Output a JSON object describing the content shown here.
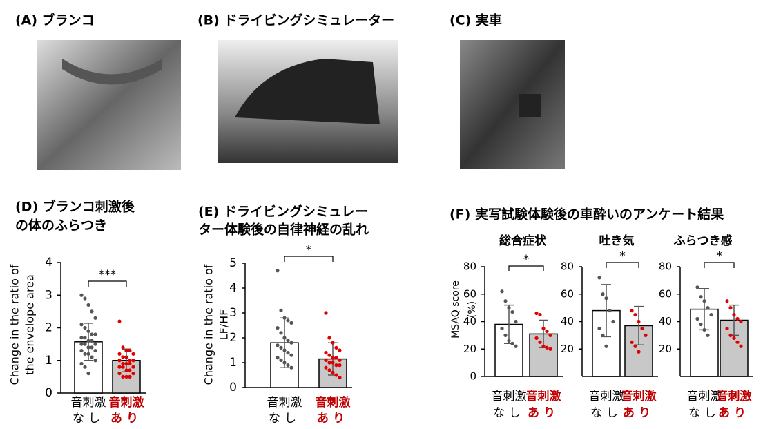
{
  "panels": [
    {
      "label": "(A) ブランコ"
    },
    {
      "label": "(B) ドライビングシミュレーター"
    },
    {
      "label": "(C) 実車"
    }
  ],
  "figure_f": {
    "title": "(F) 実写試験体験後の車酔いのアンケート結果"
  },
  "chart_data": [
    {
      "type": "bar",
      "title": [
        "(D) ブランコ刺激後",
        "の体のふらつき"
      ],
      "ylabel": [
        "Change in the ratio of",
        "the envelope area"
      ],
      "categories": [
        [
          "音刺激",
          "なし"
        ],
        [
          "音刺激",
          "あり"
        ]
      ],
      "values": [
        1.57,
        1.0
      ],
      "errors": [
        0.57,
        0.35
      ],
      "colors": [
        "#ffffff",
        "#c8c8c8"
      ],
      "point_colors": [
        "#555555",
        "#e00000"
      ],
      "label_colors": [
        "#000000",
        "#c00000"
      ],
      "points": [
        [
          3.0,
          2.9,
          2.7,
          2.5,
          2.3,
          2.1,
          2.0,
          1.9,
          1.8,
          1.8,
          1.7,
          1.7,
          1.6,
          1.6,
          1.5,
          1.5,
          1.5,
          1.4,
          1.4,
          1.3,
          1.3,
          1.2,
          1.2,
          1.1,
          1.0,
          0.9,
          0.8,
          0.6
        ],
        [
          2.2,
          1.4,
          1.3,
          1.3,
          1.2,
          1.2,
          1.1,
          1.1,
          1.0,
          1.0,
          1.0,
          0.9,
          0.9,
          0.9,
          0.8,
          0.8,
          0.8,
          0.7,
          0.7,
          0.6,
          0.6,
          0.5,
          0.5,
          0.5
        ]
      ],
      "annotation": "***",
      "ylim": [
        0,
        4
      ],
      "yticks": [
        0,
        1,
        2,
        3,
        4
      ]
    },
    {
      "type": "bar",
      "title": [
        "(E) ドライビングシミュレー",
        "ター体験後の自律神経の乱れ"
      ],
      "ylabel": [
        "Change in the ratio of",
        "LF/HF"
      ],
      "categories": [
        [
          "音刺激",
          "なし"
        ],
        [
          "音刺激",
          "あり"
        ]
      ],
      "values": [
        1.8,
        1.15
      ],
      "errors": [
        1.0,
        0.65
      ],
      "colors": [
        "#ffffff",
        "#c8c8c8"
      ],
      "point_colors": [
        "#555555",
        "#e00000"
      ],
      "label_colors": [
        "#000000",
        "#c00000"
      ],
      "points": [
        [
          4.7,
          3.1,
          2.8,
          2.7,
          2.6,
          2.4,
          2.2,
          2.0,
          1.9,
          1.8,
          1.7,
          1.6,
          1.5,
          1.4,
          1.3,
          1.2,
          1.1,
          1.0,
          0.9,
          0.8
        ],
        [
          3.0,
          2.0,
          1.8,
          1.6,
          1.5,
          1.4,
          1.3,
          1.2,
          1.2,
          1.1,
          1.1,
          1.0,
          1.0,
          0.9,
          0.9,
          0.8,
          0.7,
          0.6,
          0.5,
          0.4
        ]
      ],
      "annotation": "*",
      "ylim": [
        0,
        5
      ],
      "yticks": [
        0,
        1,
        2,
        3,
        4,
        5
      ]
    },
    {
      "type": "bar",
      "title": [
        "総合症状"
      ],
      "ylabel": [
        "MSAQ score",
        "(%)"
      ],
      "categories": [
        [
          "音刺激",
          "なし"
        ],
        [
          "音刺激",
          "あり"
        ]
      ],
      "values": [
        38,
        31
      ],
      "errors": [
        14,
        10
      ],
      "colors": [
        "#ffffff",
        "#c8c8c8"
      ],
      "point_colors": [
        "#555555",
        "#e00000"
      ],
      "label_colors": [
        "#000000",
        "#c00000"
      ],
      "points": [
        [
          62,
          55,
          50,
          47,
          40,
          35,
          30,
          26,
          24,
          22
        ],
        [
          46,
          45,
          35,
          33,
          30,
          28,
          25,
          22,
          21,
          20
        ]
      ],
      "annotation": "*",
      "ylim": [
        0,
        80
      ],
      "yticks": [
        0,
        20,
        40,
        60,
        80
      ]
    },
    {
      "type": "bar",
      "title": [
        "吐き気"
      ],
      "categories": [
        [
          "音刺激",
          "なし"
        ],
        [
          "音刺激",
          "あり"
        ]
      ],
      "values": [
        48,
        37
      ],
      "errors": [
        19,
        14
      ],
      "colors": [
        "#ffffff",
        "#c8c8c8"
      ],
      "point_colors": [
        "#555555",
        "#e00000"
      ],
      "label_colors": [
        "#000000",
        "#c00000"
      ],
      "points": [
        [
          72,
          60,
          57,
          48,
          40,
          35,
          30,
          22
        ],
        [
          48,
          45,
          40,
          35,
          30,
          25,
          22,
          18
        ]
      ],
      "annotation": "*",
      "ylim": [
        0,
        80
      ],
      "yticks": [
        20,
        40,
        60,
        80
      ]
    },
    {
      "type": "bar",
      "title": [
        "ふらつき感"
      ],
      "categories": [
        [
          "音刺激",
          "なし"
        ],
        [
          "音刺激",
          "あり"
        ]
      ],
      "values": [
        49,
        41
      ],
      "errors": [
        15,
        11
      ],
      "colors": [
        "#ffffff",
        "#c8c8c8"
      ],
      "point_colors": [
        "#555555",
        "#e00000"
      ],
      "label_colors": [
        "#000000",
        "#c00000"
      ],
      "points": [
        [
          65,
          58,
          55,
          50,
          45,
          42,
          38,
          34,
          30
        ],
        [
          55,
          50,
          45,
          42,
          40,
          35,
          30,
          28,
          25,
          22
        ]
      ],
      "annotation": "*",
      "ylim": [
        0,
        80
      ],
      "yticks": [
        20,
        40,
        60,
        80
      ]
    }
  ]
}
